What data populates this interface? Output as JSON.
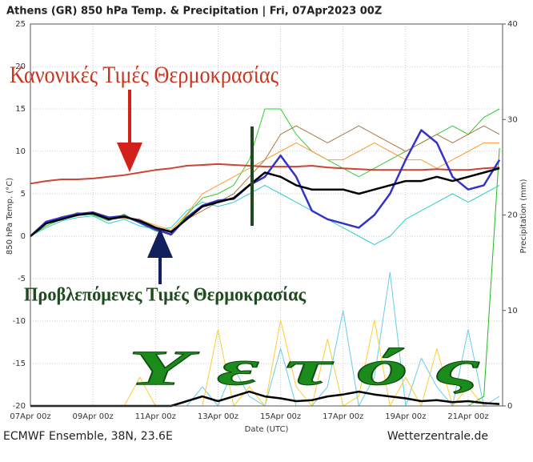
{
  "chart_data": {
    "type": "line",
    "title": "Athens  (GR)  850 hPa Temp. & Precipitation | Fri, 07Apr2023 00Z",
    "xlabel": "Date (UTC)",
    "ylabel": "850 hPa Temp. (°C)",
    "y2label": "Precipitation (mm)",
    "caption": "ECMWF Ensemble, 38N, 23.6E",
    "credit": "Wetterzentrale.de",
    "annotations": [
      {
        "text": "Κανονικές Τιμές Θερμοκρασίας",
        "color": "#c9351f"
      },
      {
        "text": "Προβλεπόμενες Τιμές Θερμοκρασίας",
        "color": "#1f4a1f"
      },
      {
        "text": "Υ ε τ ό ς",
        "color": "#1b8c1b"
      }
    ],
    "x": [
      0,
      0.5,
      1,
      1.5,
      2,
      2.5,
      3,
      3.5,
      4,
      4.5,
      5,
      5.5,
      6,
      6.5,
      7,
      7.5,
      8,
      8.5,
      9,
      9.5,
      10,
      10.5,
      11,
      11.5,
      12,
      12.5,
      13,
      13.5,
      14,
      14.5,
      15
    ],
    "xlim": [
      0,
      15.1
    ],
    "xticks": [
      {
        "value": 0,
        "label": "07Apr 00z"
      },
      {
        "value": 2,
        "label": "09Apr 00z"
      },
      {
        "value": 4,
        "label": "11Apr 00z"
      },
      {
        "value": 6,
        "label": "13Apr 00z"
      },
      {
        "value": 8,
        "label": "15Apr 00z"
      },
      {
        "value": 10,
        "label": "17Apr 00z"
      },
      {
        "value": 12,
        "label": "19Apr 00z"
      },
      {
        "value": 14,
        "label": "21Apr 00z"
      }
    ],
    "ylim": [
      -20,
      25
    ],
    "yticks": [
      -20,
      -15,
      -10,
      -5,
      0,
      5,
      10,
      15,
      20,
      25
    ],
    "y2lim": [
      0,
      40
    ],
    "y2ticks": [
      0,
      10,
      20,
      30,
      40
    ],
    "grid": true,
    "series": [
      {
        "color": "#66ccee",
        "width": 1,
        "axis": "y2",
        "values": [
          0,
          0,
          0,
          0,
          0,
          0,
          0,
          0,
          0,
          0,
          0,
          2,
          0,
          4,
          1,
          0,
          6,
          0,
          0,
          2,
          10,
          0,
          3,
          14,
          0,
          5,
          2,
          0,
          8,
          0,
          1
        ]
      },
      {
        "color": "#ffcc33",
        "width": 1,
        "axis": "y2",
        "values": [
          0,
          0,
          0,
          0,
          0,
          0,
          0,
          3,
          0,
          0,
          0,
          0,
          8,
          0,
          2,
          0,
          9,
          2,
          0,
          7,
          0,
          1,
          9,
          0,
          3,
          0,
          6,
          0,
          2,
          0,
          0
        ]
      },
      {
        "color": "#22bb22",
        "width": 1,
        "axis": "y2",
        "values": [
          0,
          0,
          0,
          0,
          0,
          0,
          0,
          0,
          0,
          0,
          0,
          0,
          0,
          0,
          0,
          0,
          0,
          0,
          0,
          0,
          0,
          0,
          0,
          0,
          0,
          0,
          0,
          0,
          0,
          1,
          27
        ]
      },
      {
        "color": "#000000",
        "width": 2.5,
        "axis": "y2",
        "values": [
          0,
          0,
          0,
          0,
          0,
          0,
          0,
          0,
          0,
          0,
          0.5,
          1,
          0.5,
          1,
          1.5,
          1,
          0.8,
          0.5,
          0.6,
          1,
          1.2,
          1.5,
          1.2,
          1,
          0.8,
          0.5,
          0.6,
          0.4,
          0.5,
          0.3,
          0.2
        ]
      },
      {
        "color": "#33cc33",
        "width": 1,
        "values": [
          0,
          1.2,
          2,
          2.8,
          2.5,
          1.8,
          2.6,
          1.5,
          0.6,
          0.3,
          2.5,
          4.5,
          5,
          6,
          9,
          15,
          15,
          12,
          10,
          9,
          8,
          7,
          8,
          9,
          10,
          11,
          12,
          13,
          12,
          14,
          15
        ]
      },
      {
        "color": "#33cccc",
        "width": 1,
        "values": [
          0,
          1,
          1.8,
          2.2,
          2.4,
          1.5,
          2,
          1.2,
          0.8,
          1,
          3,
          4,
          3.5,
          4,
          5,
          6,
          5,
          4,
          3,
          2,
          1,
          0,
          -1,
          0,
          2,
          3,
          4,
          5,
          4,
          5,
          6
        ]
      },
      {
        "color": "#ff9933",
        "width": 1,
        "values": [
          0,
          1.4,
          2.1,
          2.4,
          2.9,
          2.3,
          2.1,
          1.9,
          1.3,
          0.7,
          2.6,
          5,
          6,
          7,
          8,
          9,
          10,
          11,
          10,
          9,
          9,
          10,
          11,
          10,
          9,
          9,
          8,
          9,
          10,
          11,
          11
        ]
      },
      {
        "color": "#aa7744",
        "width": 1,
        "values": [
          0,
          1.6,
          2.3,
          2.7,
          2.6,
          2.1,
          2.2,
          2,
          1.1,
          0.6,
          2,
          3,
          4,
          5,
          7,
          9,
          12,
          13,
          12,
          11,
          12,
          13,
          12,
          11,
          10,
          11,
          12,
          11,
          12,
          13,
          12
        ]
      },
      {
        "color": "#cc4433",
        "width": 2,
        "values": [
          6.2,
          6.5,
          6.7,
          6.7,
          6.8,
          7,
          7.2,
          7.5,
          7.8,
          8,
          8.3,
          8.4,
          8.5,
          8.4,
          8.3,
          8.2,
          8.2,
          8.2,
          8.3,
          8.1,
          8,
          7.9,
          7.8,
          7.8,
          7.8,
          7.8,
          7.9,
          7.8,
          7.8,
          8,
          8.1
        ]
      },
      {
        "color": "#3333cc",
        "width": 2.5,
        "values": [
          0,
          1.7,
          2.2,
          2.6,
          2.8,
          2.2,
          2.4,
          1.6,
          0.8,
          0.2,
          2.2,
          3.6,
          4.2,
          4.4,
          6,
          7,
          9.5,
          7,
          3,
          2,
          1.5,
          1,
          2.5,
          5,
          9,
          12.5,
          11,
          7,
          5.5,
          6,
          9
        ]
      },
      {
        "color": "#000000",
        "width": 2.5,
        "values": [
          0,
          1.5,
          2,
          2.5,
          2.7,
          2,
          2.3,
          1.8,
          1,
          0.5,
          2,
          3.5,
          4,
          4.5,
          6,
          7.5,
          7,
          6,
          5.5,
          5.5,
          5.5,
          5,
          5.5,
          6,
          6.5,
          6.5,
          7,
          6.5,
          7,
          7.5,
          8
        ]
      }
    ]
  }
}
